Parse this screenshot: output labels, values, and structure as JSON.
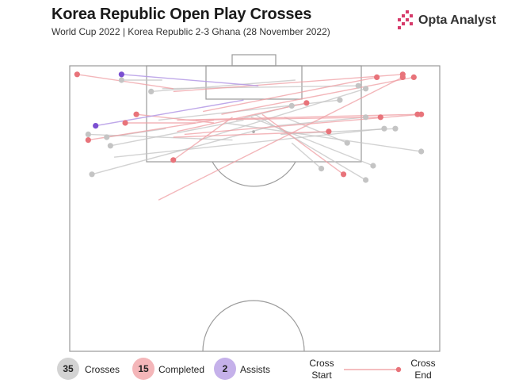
{
  "header": {
    "title": "Korea Republic Open Play Crosses",
    "subtitle": "World Cup 2022 | Korea Republic 2-3 Ghana (28 November 2022)",
    "brand": "Opta Analyst"
  },
  "legend": {
    "total_count": "35",
    "total_label": "Crosses",
    "completed_count": "15",
    "completed_label": "Completed",
    "assists_count": "2",
    "assists_label": "Assists",
    "key_start_line1": "Cross",
    "key_start_line2": "Start",
    "key_end_line1": "Cross",
    "key_end_line2": "End"
  },
  "colors": {
    "incomplete": "#b9b9b9",
    "completed": "#e8737a",
    "assist": "#7b4fd1",
    "pitch_line": "#9a9a9a",
    "brand_accent": "#d63a6a"
  },
  "chart_data": {
    "type": "scatter",
    "pitch": "half-pitch, attacking goal at top",
    "coordinate_system": "x: 0 (left touchline) to 100 (right touchline); y: 0 (goal line) to 100 (halfway line)",
    "crosses": [
      {
        "outcome": "completed",
        "start": [
          2,
          3
        ],
        "end": [
          28,
          8
        ]
      },
      {
        "outcome": "completed",
        "start": [
          90,
          3
        ],
        "end": [
          28,
          9
        ]
      },
      {
        "outcome": "completed",
        "start": [
          94,
          17
        ],
        "end": [
          29,
          19
        ]
      },
      {
        "outcome": "completed",
        "start": [
          84,
          18
        ],
        "end": [
          34,
          19
        ]
      },
      {
        "outcome": "completed",
        "start": [
          15,
          20
        ],
        "end": [
          34,
          20
        ]
      },
      {
        "outcome": "completed",
        "start": [
          5,
          26
        ],
        "end": [
          39,
          19
        ]
      },
      {
        "outcome": "completed",
        "start": [
          70,
          23
        ],
        "end": [
          28,
          25
        ]
      },
      {
        "outcome": "completed",
        "start": [
          64,
          13
        ],
        "end": [
          29,
          23
        ]
      },
      {
        "outcome": "completed",
        "start": [
          28,
          33
        ],
        "end": [
          44,
          18
        ]
      },
      {
        "outcome": "completed",
        "start": [
          74,
          38
        ],
        "end": [
          52,
          17
        ]
      },
      {
        "outcome": "completed",
        "start": [
          18,
          17
        ],
        "end": [
          39,
          20
        ]
      },
      {
        "outcome": "completed",
        "start": [
          90,
          4
        ],
        "end": [
          24,
          47
        ]
      },
      {
        "outcome": "completed",
        "start": [
          83,
          4
        ],
        "end": [
          36,
          16
        ]
      },
      {
        "outcome": "completed",
        "start": [
          95,
          17
        ],
        "end": [
          31,
          24
        ]
      },
      {
        "outcome": "completed",
        "start": [
          93,
          4
        ],
        "end": [
          41,
          17
        ]
      },
      {
        "outcome": "assist",
        "start": [
          14,
          3
        ],
        "end": [
          51,
          7
        ]
      },
      {
        "outcome": "assist",
        "start": [
          7,
          21
        ],
        "end": [
          47,
          12
        ]
      },
      {
        "outcome": "incomplete",
        "start": [
          14,
          5
        ],
        "end": [
          25,
          5
        ]
      },
      {
        "outcome": "incomplete",
        "start": [
          78,
          7
        ],
        "end": [
          25,
          8
        ]
      },
      {
        "outcome": "incomplete",
        "start": [
          22,
          9
        ],
        "end": [
          61,
          5
        ]
      },
      {
        "outcome": "incomplete",
        "start": [
          80,
          8
        ],
        "end": [
          35,
          26
        ]
      },
      {
        "outcome": "incomplete",
        "start": [
          73,
          12
        ],
        "end": [
          24,
          19
        ]
      },
      {
        "outcome": "incomplete",
        "start": [
          10,
          25
        ],
        "end": [
          26,
          22
        ]
      },
      {
        "outcome": "incomplete",
        "start": [
          85,
          22
        ],
        "end": [
          12,
          32
        ]
      },
      {
        "outcome": "incomplete",
        "start": [
          5,
          24
        ],
        "end": [
          44,
          26
        ]
      },
      {
        "outcome": "incomplete",
        "start": [
          95,
          30
        ],
        "end": [
          42,
          20
        ]
      },
      {
        "outcome": "incomplete",
        "start": [
          82,
          35
        ],
        "end": [
          49,
          18
        ]
      },
      {
        "outcome": "incomplete",
        "start": [
          80,
          40
        ],
        "end": [
          50,
          17
        ]
      },
      {
        "outcome": "incomplete",
        "start": [
          6,
          38
        ],
        "end": [
          55,
          21
        ]
      },
      {
        "outcome": "incomplete",
        "start": [
          60,
          14
        ],
        "end": [
          45,
          19
        ]
      },
      {
        "outcome": "incomplete",
        "start": [
          88,
          22
        ],
        "end": [
          57,
          24
        ]
      },
      {
        "outcome": "incomplete",
        "start": [
          75,
          27
        ],
        "end": [
          58,
          18
        ]
      },
      {
        "outcome": "incomplete",
        "start": [
          80,
          18
        ],
        "end": [
          56,
          21
        ]
      },
      {
        "outcome": "incomplete",
        "start": [
          11,
          28
        ],
        "end": [
          47,
          19
        ]
      },
      {
        "outcome": "incomplete",
        "start": [
          68,
          36
        ],
        "end": [
          60,
          27
        ]
      }
    ]
  }
}
